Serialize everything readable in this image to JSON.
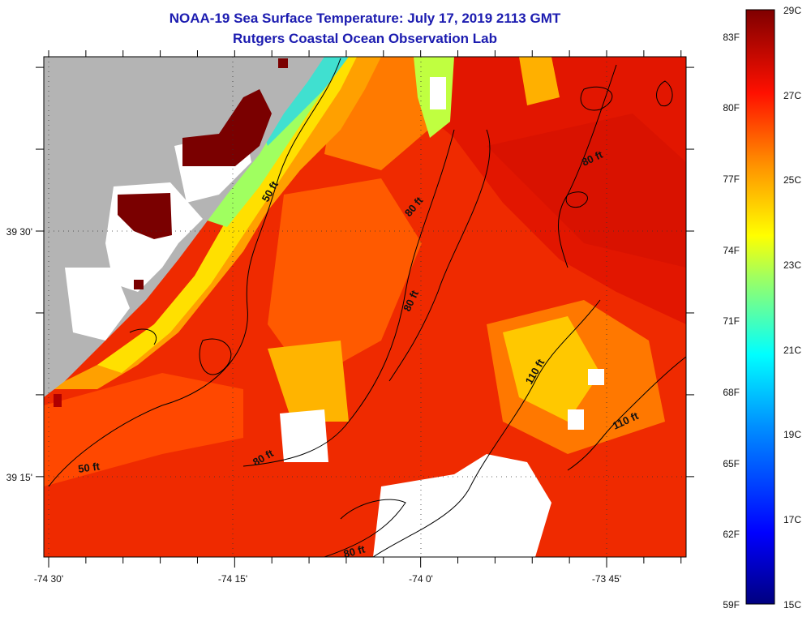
{
  "header": {
    "title": "NOAA-19 Sea Surface Temperature:  July 17, 2019 2113 GMT",
    "subtitle": "Rutgers Coastal Ocean Observation Lab"
  },
  "map": {
    "lon_ticks": [
      {
        "value": -74.5,
        "label": "-74 30'"
      },
      {
        "value": -74.25,
        "label": "-74 15'"
      },
      {
        "value": -74.0,
        "label": "-74 0'"
      },
      {
        "value": -73.75,
        "label": "-73 45'"
      }
    ],
    "lat_ticks": [
      {
        "value": 39.5,
        "label": "39 30'"
      },
      {
        "value": 39.25,
        "label": "39 15'"
      }
    ],
    "contour_labels": [
      {
        "text": "50 ft"
      },
      {
        "text": "80 ft"
      },
      {
        "text": "80 ft"
      },
      {
        "text": "80 ft"
      },
      {
        "text": "110 ft"
      },
      {
        "text": "110 ft"
      },
      {
        "text": "80 ft"
      },
      {
        "text": "50 ft"
      },
      {
        "text": "80 ft"
      }
    ]
  },
  "colorbar": {
    "celsius_labels": [
      "29C",
      "27C",
      "25C",
      "23C",
      "21C",
      "19C",
      "17C",
      "15C"
    ],
    "fahrenheit_labels": [
      "83F",
      "80F",
      "77F",
      "74F",
      "71F",
      "68F",
      "65F",
      "62F",
      "59F"
    ],
    "range_c": [
      15,
      29
    ],
    "colors": [
      "#00007f",
      "#0000ff",
      "#0080ff",
      "#00ffff",
      "#80ff80",
      "#ffff00",
      "#ff8000",
      "#ff0000",
      "#7f0000"
    ]
  },
  "colors": {
    "land": "#b4b4b4",
    "no_data": "#ffffff",
    "frame": "#000000"
  }
}
